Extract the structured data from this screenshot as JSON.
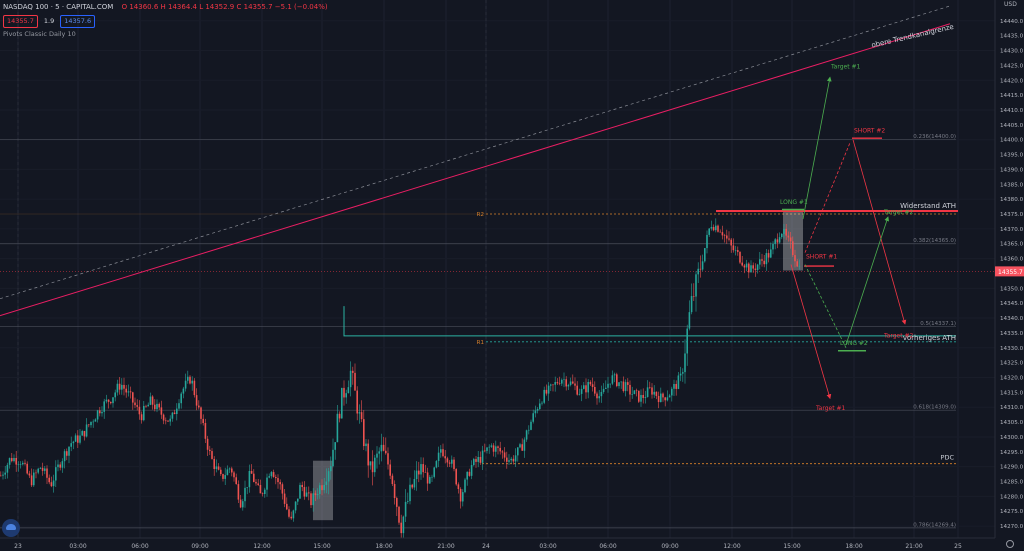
{
  "header": {
    "symbol": "NASDAQ 100 · 5 · CAPITAL.COM",
    "open": "O 14360.6",
    "high": "H 14364.4",
    "low": "L 14352.9",
    "close": "C 14355.7",
    "change": "−5.1 (−0.04%)",
    "sell_price": "14355.7",
    "spread": "1.9",
    "buy_price": "14357.6",
    "indicator": "Pivots Classic Daily 10",
    "currency": "USD"
  },
  "colors": {
    "background": "#131722",
    "up": "#26a69a",
    "down": "#ef5350",
    "trend_channel": "#e91e63",
    "resistance": "#f23645",
    "long": "#4caf50",
    "short": "#f23645",
    "last_price": "#f7525f"
  },
  "chart_data": {
    "type": "candlestick",
    "timeframe": "5",
    "y_axis": {
      "ticks": [
        14270.0,
        14275.0,
        14280.0,
        14285.0,
        14290.0,
        14295.0,
        14300.0,
        14305.0,
        14310.0,
        14315.0,
        14320.0,
        14325.0,
        14330.0,
        14335.0,
        14340.0,
        14345.0,
        14350.0,
        14355.0,
        14360.0,
        14365.0,
        14370.0,
        14375.0,
        14380.0,
        14385.0,
        14390.0,
        14395.0,
        14400.0,
        14405.0,
        14410.0,
        14415.0,
        14420.0,
        14425.0,
        14430.0,
        14435.0,
        14440.0
      ],
      "range": [
        14266,
        14447
      ],
      "last_price": 14355.7,
      "last_price_label": "14355.7"
    },
    "x_axis": {
      "labels": [
        "23",
        "03:00",
        "06:00",
        "09:00",
        "12:00",
        "15:00",
        "18:00",
        "21:00",
        "24",
        "03:00",
        "06:00",
        "09:00",
        "12:00",
        "15:00",
        "18:00",
        "21:00",
        "25"
      ]
    },
    "price_path": [
      [
        0,
        14287
      ],
      [
        10,
        14293
      ],
      [
        20,
        14292
      ],
      [
        30,
        14285
      ],
      [
        40,
        14290
      ],
      [
        50,
        14284
      ],
      [
        60,
        14292
      ],
      [
        70,
        14298
      ],
      [
        80,
        14300
      ],
      [
        90,
        14305
      ],
      [
        100,
        14310
      ],
      [
        110,
        14313
      ],
      [
        120,
        14318
      ],
      [
        130,
        14313
      ],
      [
        140,
        14307
      ],
      [
        150,
        14312
      ],
      [
        160,
        14308
      ],
      [
        170,
        14305
      ],
      [
        180,
        14315
      ],
      [
        190,
        14320
      ],
      [
        200,
        14306
      ],
      [
        210,
        14293
      ],
      [
        220,
        14286
      ],
      [
        230,
        14290
      ],
      [
        240,
        14278
      ],
      [
        250,
        14288
      ],
      [
        260,
        14280
      ],
      [
        270,
        14290
      ],
      [
        280,
        14283
      ],
      [
        290,
        14271
      ],
      [
        300,
        14284
      ],
      [
        310,
        14278
      ],
      [
        320,
        14284
      ],
      [
        330,
        14292
      ],
      [
        340,
        14312
      ],
      [
        350,
        14322
      ],
      [
        360,
        14304
      ],
      [
        370,
        14288
      ],
      [
        380,
        14296
      ],
      [
        390,
        14289
      ],
      [
        400,
        14270
      ],
      [
        410,
        14282
      ],
      [
        420,
        14290
      ],
      [
        430,
        14284
      ],
      [
        440,
        14296
      ],
      [
        450,
        14292
      ],
      [
        460,
        14280
      ],
      [
        470,
        14290
      ],
      [
        480,
        14293
      ],
      [
        490,
        14297
      ],
      [
        500,
        14295
      ],
      [
        510,
        14292
      ],
      [
        520,
        14296
      ],
      [
        530,
        14305
      ],
      [
        540,
        14313
      ],
      [
        550,
        14316
      ],
      [
        560,
        14320
      ],
      [
        570,
        14318
      ],
      [
        580,
        14315
      ],
      [
        590,
        14318
      ],
      [
        600,
        14313
      ],
      [
        610,
        14320
      ],
      [
        620,
        14318
      ],
      [
        630,
        14315
      ],
      [
        640,
        14313
      ],
      [
        650,
        14316
      ],
      [
        660,
        14313
      ],
      [
        670,
        14315
      ],
      [
        680,
        14320
      ],
      [
        690,
        14344
      ],
      [
        700,
        14358
      ],
      [
        710,
        14372
      ],
      [
        720,
        14370
      ],
      [
        730,
        14364
      ],
      [
        740,
        14360
      ],
      [
        750,
        14356
      ],
      [
        760,
        14359
      ],
      [
        770,
        14362
      ],
      [
        780,
        14370
      ],
      [
        790,
        14364
      ],
      [
        800,
        14356
      ]
    ],
    "levels": [
      {
        "label": "R2",
        "price": 14375.0,
        "style": "dotted-orange"
      },
      {
        "label": "R1",
        "price": 14332.0,
        "style": "dotted-teal"
      },
      {
        "label": "0.236(14400.0)",
        "price": 14400.0,
        "style": "fib"
      },
      {
        "label": "0.382(14365.0)",
        "price": 14365.0,
        "style": "fib"
      },
      {
        "label": "0.5(14337.1)",
        "price": 14337.1,
        "style": "fib"
      },
      {
        "label": "0.618(14309.0)",
        "price": 14309.0,
        "style": "fib"
      },
      {
        "label": "0.786(14269.4)",
        "price": 14269.4,
        "style": "fib"
      },
      {
        "label": "PDC",
        "price": 14291.0,
        "style": "dotted-orange"
      }
    ],
    "trend_channel_label": "obere Trendkanalgrenze",
    "annotations": [
      {
        "label": "Widerstand ATH",
        "kind": "resistance"
      },
      {
        "label": "vorheriges ATH",
        "kind": "level"
      },
      {
        "label": "LONG #1",
        "kind": "long"
      },
      {
        "label": "LONG #2",
        "kind": "long"
      },
      {
        "label": "SHORT #1",
        "kind": "short"
      },
      {
        "label": "SHORT #2",
        "kind": "short"
      },
      {
        "label": "Target #1",
        "kind": "long-target",
        "price": 14423
      },
      {
        "label": "Target #1",
        "kind": "short-target",
        "price": 14312
      },
      {
        "label": "Target #2",
        "kind": "long-target",
        "price": 14375
      },
      {
        "label": "Target #2",
        "kind": "short-target",
        "price": 14335
      }
    ]
  }
}
